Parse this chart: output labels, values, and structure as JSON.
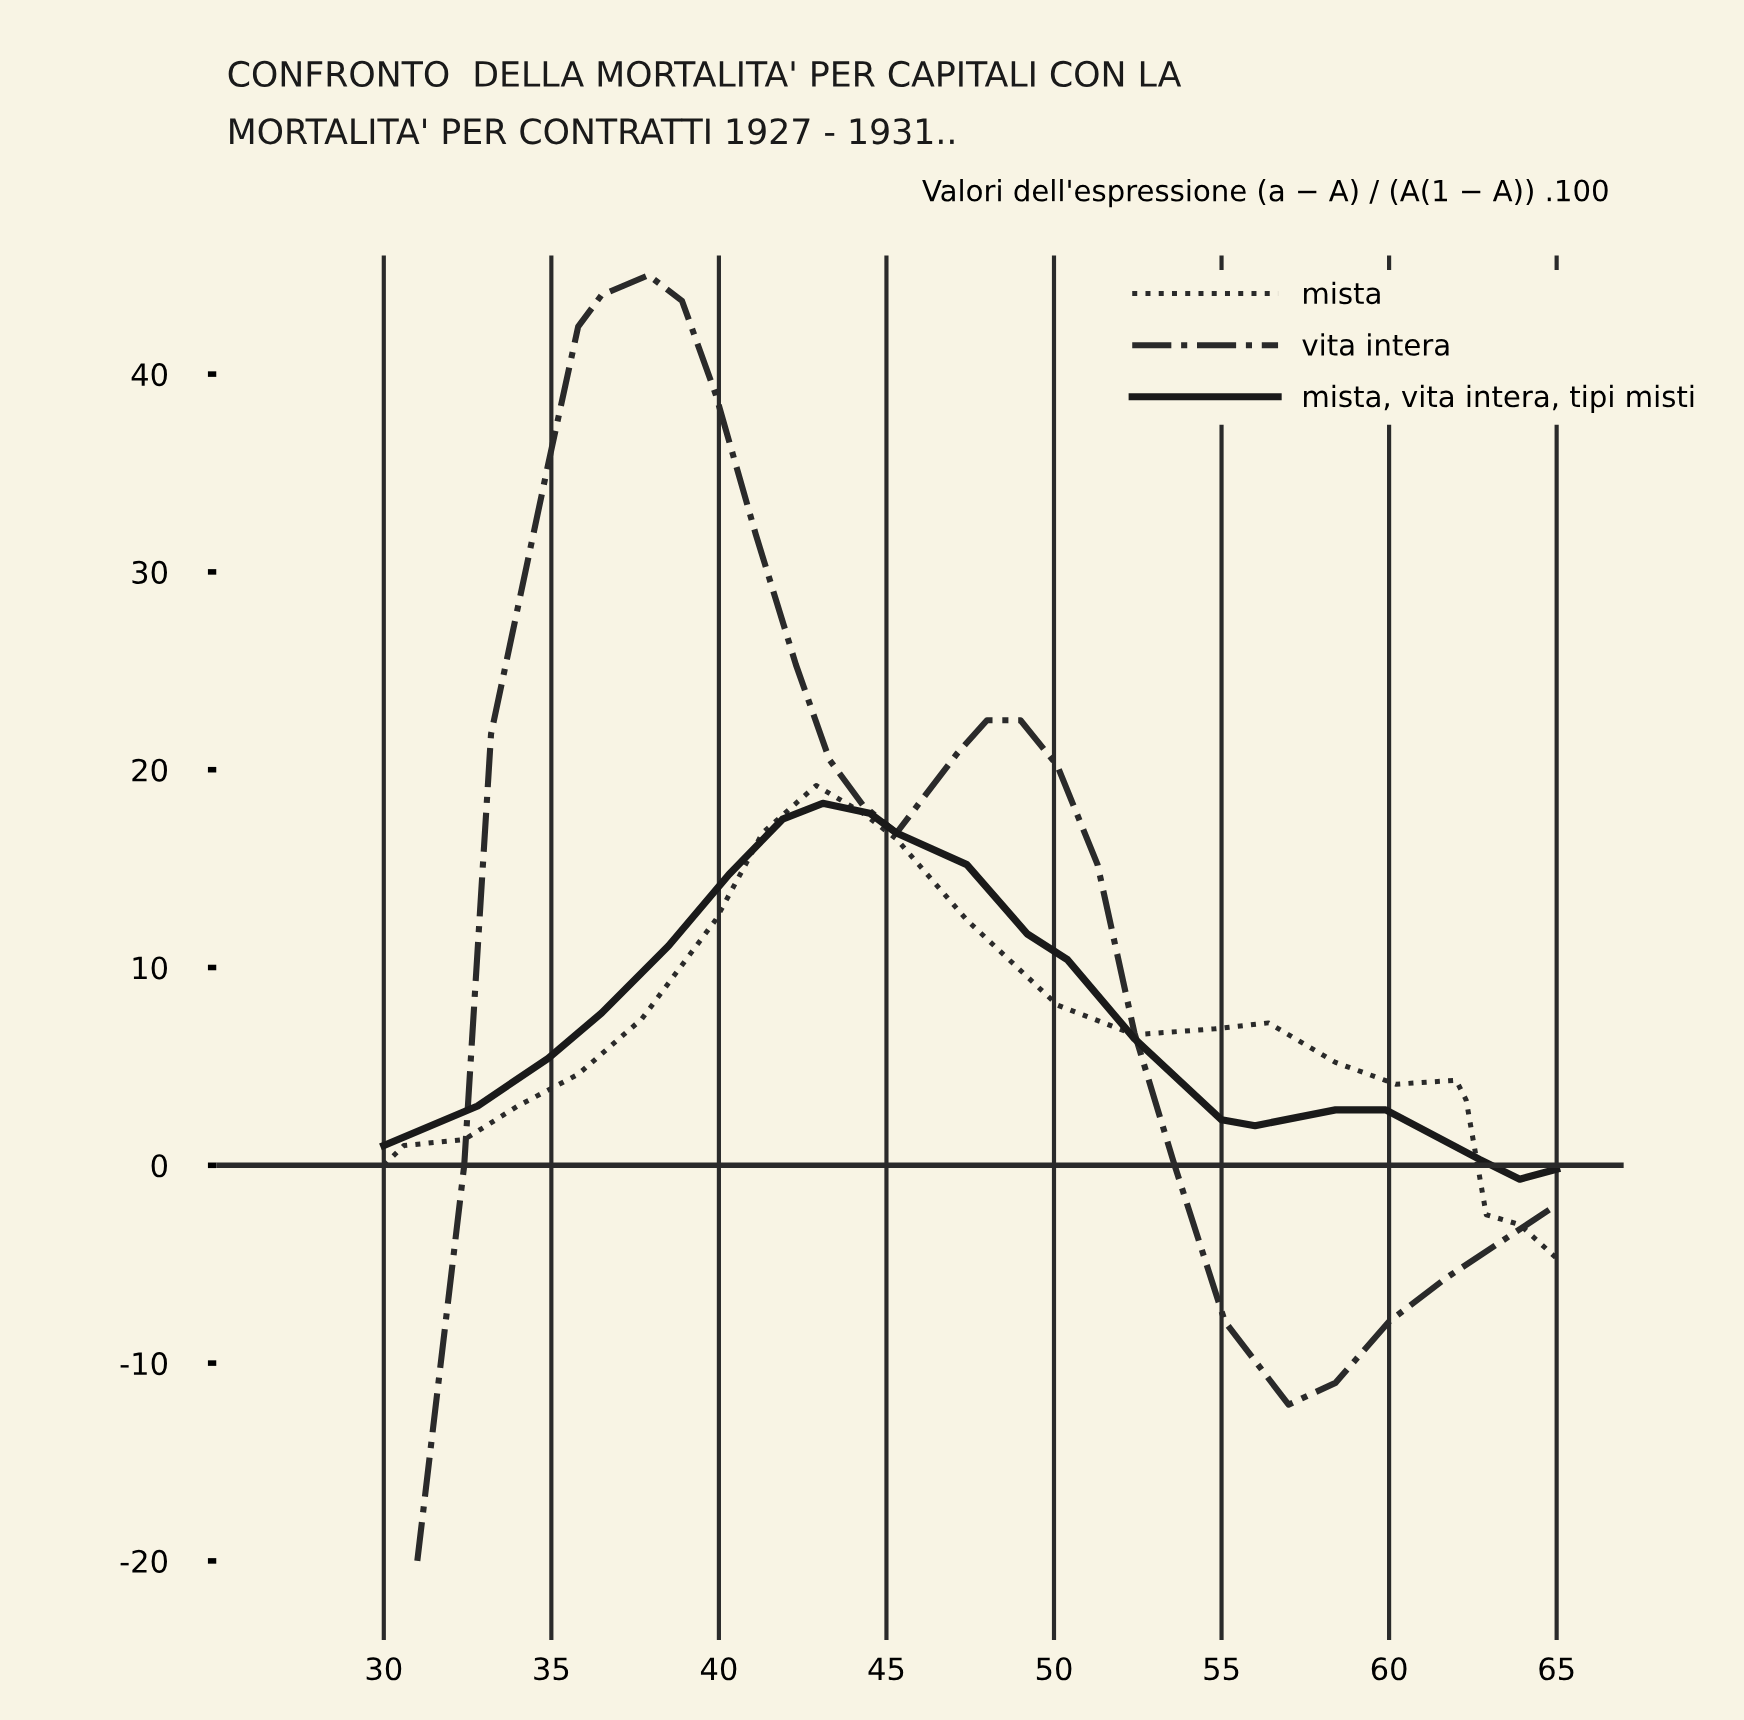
{
  "chart_data": {
    "type": "line",
    "title": "CONFRONTO  DELLA MORTALITA' PER CAPITALI CON LA\nMORTALITA' PER CONTRATTI 1927 - 1931..",
    "annotations": [
      "Valori dell'espressione (a − A) / (A(1 − A)) .100"
    ],
    "series": [
      {
        "name": "mista",
        "color": "#2a2a2a",
        "line_style": "dotted",
        "x": [
          30,
          30.6,
          32.4,
          34.0,
          35.8,
          37.7,
          39.9,
          41.3,
          42.9,
          44.3,
          45.3,
          47.4,
          50.1,
          52.4,
          54.8,
          56.4,
          58.4,
          60.2,
          62.0,
          62.3,
          62.9,
          63.9,
          65.0
        ],
        "values": [
          0,
          1,
          1.3,
          3,
          4.6,
          7.4,
          12.4,
          16.8,
          19.2,
          17.8,
          16.5,
          12.4,
          8.1,
          6.6,
          6.9,
          7.2,
          5.2,
          4.1,
          4.3,
          3.3,
          -2.5,
          -3,
          -4.7
        ]
      },
      {
        "name": "vita intera",
        "color": "#2a2a2a",
        "line_style": "dashdot",
        "x": [
          31.0,
          32.4,
          33.2,
          34.9,
          35.8,
          36.5,
          37.9,
          38.9,
          39.9,
          41.1,
          42.3,
          43.3,
          44.3,
          45.3,
          47.1,
          48.0,
          49.0,
          50.1,
          51.3,
          52.4,
          53.6,
          55.1,
          57.0,
          58.4,
          60.0,
          61.7,
          65.0
        ],
        "values": [
          -20,
          0,
          21.8,
          35.4,
          42.4,
          44,
          45,
          43.7,
          39,
          31.9,
          25.3,
          20.5,
          18.2,
          16.8,
          20.8,
          22.5,
          22.5,
          20.2,
          15.2,
          6.7,
          0,
          -7.9,
          -12.1,
          -11,
          -7.9,
          -5.7,
          -2
        ]
      },
      {
        "name": "mista, vita intera, tipi misti",
        "color": "#1a1a1a",
        "line_style": "solid",
        "x": [
          30,
          32.8,
          34.9,
          36.5,
          38.5,
          40.3,
          41.9,
          43.1,
          44.5,
          45.3,
          47.4,
          49.2,
          50.4,
          52.4,
          55.0,
          56.0,
          58.4,
          59.9,
          62.7,
          63.9,
          65.0
        ],
        "values": [
          1,
          3,
          5.4,
          7.7,
          11.1,
          14.7,
          17.5,
          18.3,
          17.8,
          16.8,
          15.2,
          11.7,
          10.4,
          6.4,
          2.3,
          2.0,
          2.8,
          2.8,
          0.3,
          -0.7,
          -0.2
        ]
      }
    ],
    "xlim": [
      25,
      67
    ],
    "xticks": [
      30,
      35,
      40,
      45,
      50,
      55,
      60,
      65
    ],
    "ylim": [
      -24,
      46
    ],
    "yticks": [
      -20,
      -10,
      0,
      10,
      20,
      30,
      40
    ],
    "ref_lines": [
      {
        "axis": "y",
        "value": 0,
        "color": "#2a2a2a"
      }
    ],
    "grid": "x",
    "legend": "top right"
  }
}
